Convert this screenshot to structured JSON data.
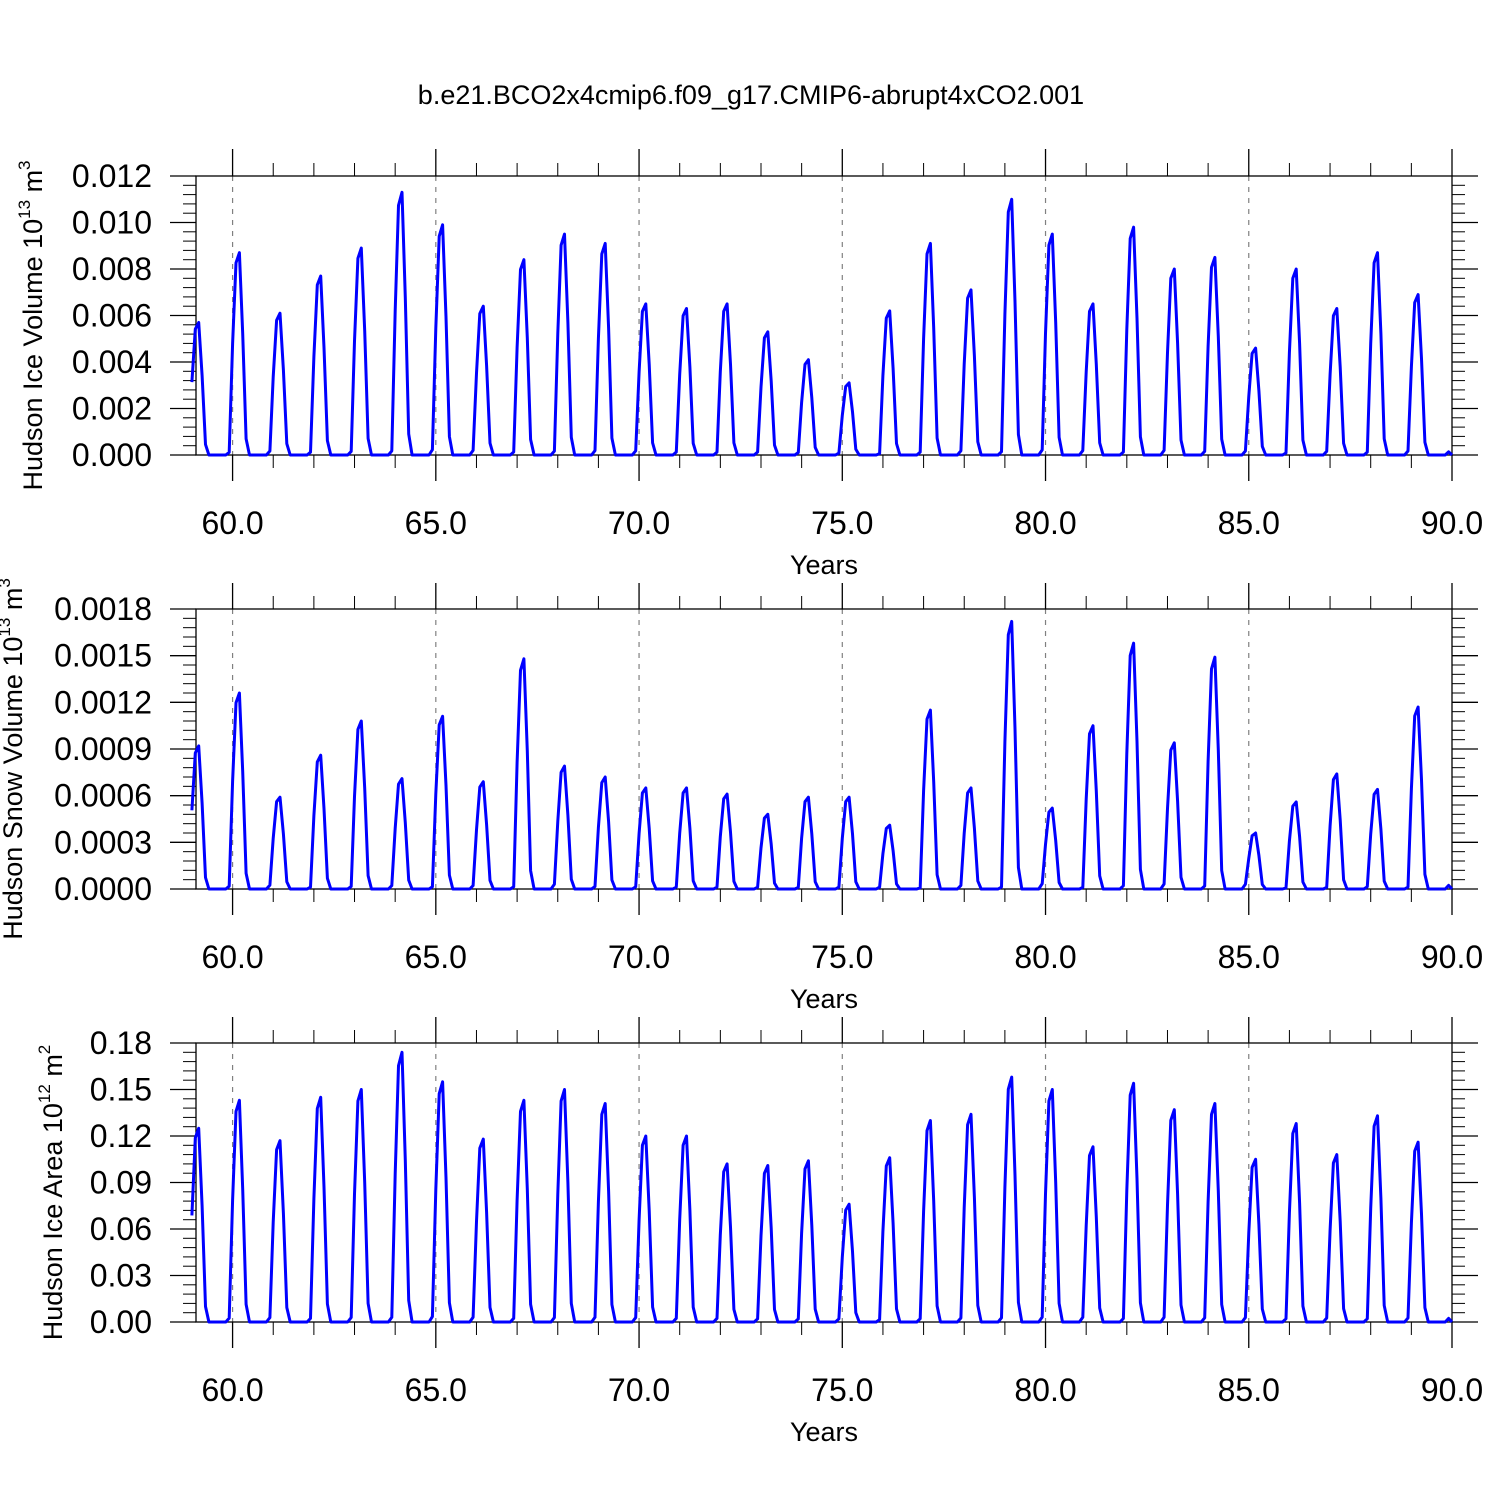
{
  "title": "b.e21.BCO2x4cmip6.f09_g17.CMIP6-abrupt4xCO2.001",
  "colors": {
    "line": "#0000ff",
    "axis": "#000000",
    "grid": "#808080"
  },
  "chart_data": [
    {
      "type": "line",
      "xlabel": "Years",
      "ylabel": {
        "base": "Hudson Ice Volume 10",
        "exp": "13",
        "unit": " m",
        "unit_exp": "3"
      },
      "xlim": [
        59.1,
        90.0
      ],
      "ylim": [
        0.0,
        0.012
      ],
      "x_ticks": [
        "60.0",
        "65.0",
        "70.0",
        "75.0",
        "80.0",
        "85.0",
        "90.0"
      ],
      "y_ticks": [
        "0.000",
        "0.002",
        "0.004",
        "0.006",
        "0.008",
        "0.010",
        "0.012"
      ],
      "grid": "dashed vertical at major x ticks",
      "peak_years": [
        59,
        60,
        61,
        62,
        63,
        64,
        65,
        66,
        67,
        68,
        69,
        70,
        71,
        72,
        73,
        74,
        75,
        76,
        77,
        78,
        79,
        80,
        81,
        82,
        83,
        84,
        85,
        86,
        87,
        88,
        89
      ],
      "peak_values": [
        0.0057,
        0.0087,
        0.0061,
        0.0077,
        0.0089,
        0.0113,
        0.0099,
        0.0064,
        0.0084,
        0.0095,
        0.0091,
        0.0065,
        0.0063,
        0.0065,
        0.0053,
        0.0041,
        0.0031,
        0.0062,
        0.0091,
        0.0071,
        0.011,
        0.0095,
        0.0065,
        0.0098,
        0.008,
        0.0085,
        0.0046,
        0.008,
        0.0063,
        0.0087,
        0.0069
      ],
      "series": [
        {
          "values": []
        }
      ]
    },
    {
      "type": "line",
      "xlabel": "Years",
      "ylabel": {
        "base": "Hudson Snow Volume 10",
        "exp": "13",
        "unit": " m",
        "unit_exp": "3"
      },
      "xlim": [
        59.1,
        90.0
      ],
      "ylim": [
        0.0,
        0.0018
      ],
      "x_ticks": [
        "60.0",
        "65.0",
        "70.0",
        "75.0",
        "80.0",
        "85.0",
        "90.0"
      ],
      "y_ticks": [
        "0.0000",
        "0.0003",
        "0.0006",
        "0.0009",
        "0.0012",
        "0.0015",
        "0.0018"
      ],
      "grid": "dashed vertical at major x ticks",
      "peak_years": [
        59,
        60,
        61,
        62,
        63,
        64,
        65,
        66,
        67,
        68,
        69,
        70,
        71,
        72,
        73,
        74,
        75,
        76,
        77,
        78,
        79,
        80,
        81,
        82,
        83,
        84,
        85,
        86,
        87,
        88,
        89
      ],
      "peak_values": [
        0.00092,
        0.00126,
        0.00059,
        0.00086,
        0.00108,
        0.00071,
        0.00111,
        0.00069,
        0.00148,
        0.00079,
        0.00072,
        0.00065,
        0.00065,
        0.00061,
        0.00048,
        0.00059,
        0.00059,
        0.00041,
        0.00115,
        0.00065,
        0.00172,
        0.00052,
        0.00105,
        0.00158,
        0.00094,
        0.00149,
        0.00036,
        0.00056,
        0.00074,
        0.00064,
        0.00117
      ],
      "series": [
        {
          "values": []
        }
      ]
    },
    {
      "type": "line",
      "xlabel": "Years",
      "ylabel": {
        "base": "Hudson Ice Area 10",
        "exp": "12",
        "unit": " m",
        "unit_exp": "2"
      },
      "xlim": [
        59.1,
        90.0
      ],
      "ylim": [
        0.0,
        0.18
      ],
      "x_ticks": [
        "60.0",
        "65.0",
        "70.0",
        "75.0",
        "80.0",
        "85.0",
        "90.0"
      ],
      "y_ticks": [
        "0.00",
        "0.03",
        "0.06",
        "0.09",
        "0.12",
        "0.15",
        "0.18"
      ],
      "grid": "dashed vertical at major x ticks",
      "peak_years": [
        59,
        60,
        61,
        62,
        63,
        64,
        65,
        66,
        67,
        68,
        69,
        70,
        71,
        72,
        73,
        74,
        75,
        76,
        77,
        78,
        79,
        80,
        81,
        82,
        83,
        84,
        85,
        86,
        87,
        88,
        89
      ],
      "peak_values": [
        0.125,
        0.143,
        0.117,
        0.145,
        0.15,
        0.174,
        0.155,
        0.118,
        0.143,
        0.15,
        0.141,
        0.12,
        0.12,
        0.102,
        0.101,
        0.104,
        0.076,
        0.106,
        0.13,
        0.134,
        0.158,
        0.15,
        0.113,
        0.154,
        0.137,
        0.141,
        0.105,
        0.128,
        0.108,
        0.133,
        0.116
      ],
      "series": [
        {
          "values": []
        }
      ]
    }
  ]
}
